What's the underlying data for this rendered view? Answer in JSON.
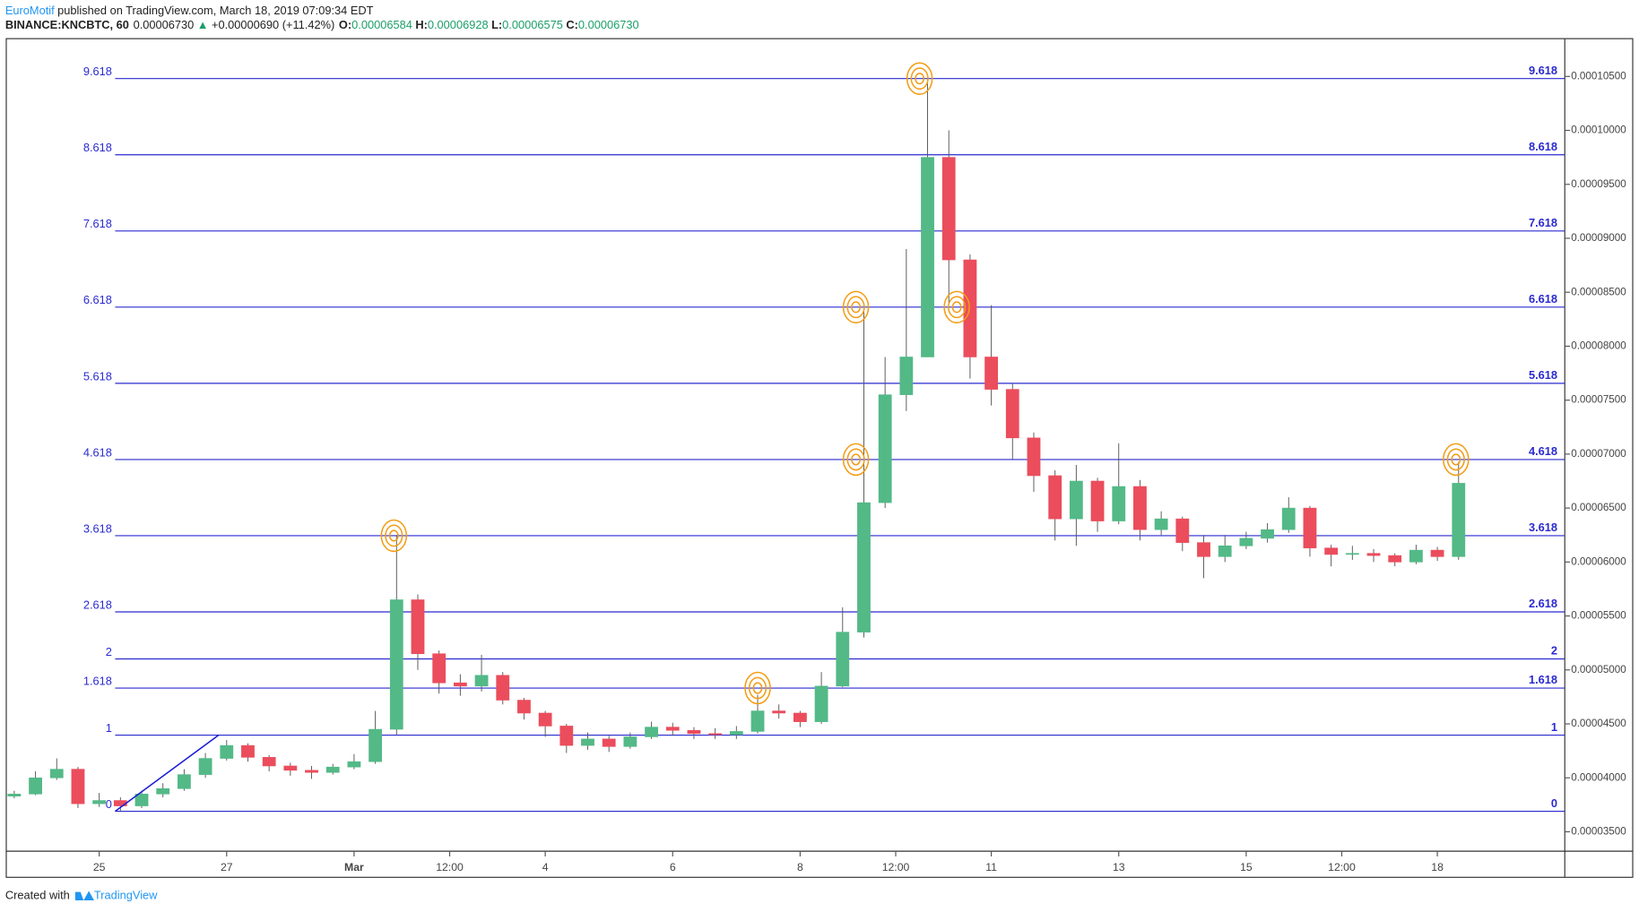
{
  "header": {
    "author": "EuroMotif",
    "published": "published on TradingView.com, March 18, 2019 07:09:34 EDT",
    "symbol": "BINANCE:KNCBTC, 60",
    "last": "0.00006730",
    "arrow": "▲",
    "change": "+0.00000690 (+11.42%)",
    "ohlc": [
      {
        "label": "O:",
        "value": "0.00006584"
      },
      {
        "label": "H:",
        "value": "0.00006928"
      },
      {
        "label": "L:",
        "value": "0.00006575"
      },
      {
        "label": "C:",
        "value": "0.00006730"
      }
    ]
  },
  "chart_data": {
    "type": "candlestick",
    "x": [
      -8,
      0,
      8,
      16,
      24,
      32,
      40,
      48,
      56,
      64,
      72,
      80,
      88,
      96,
      104,
      112,
      120,
      128,
      136,
      144,
      152,
      160,
      168,
      176,
      184,
      192,
      200,
      208,
      216,
      224,
      232,
      240,
      248,
      256,
      264,
      272,
      280,
      288,
      296,
      304,
      312,
      320,
      328,
      336,
      344,
      352,
      360,
      368,
      376,
      384,
      392,
      400,
      408,
      416,
      424,
      432,
      440,
      448,
      456,
      464,
      472,
      480,
      488,
      496,
      504,
      512,
      520,
      528,
      536
    ],
    "open": [
      3.83e-05,
      3.85e-05,
      4e-05,
      4.08e-05,
      3.76e-05,
      3.79e-05,
      3.74e-05,
      3.85e-05,
      3.9e-05,
      4.03e-05,
      4.18e-05,
      4.3e-05,
      4.19e-05,
      4.11e-05,
      4.07e-05,
      4.05e-05,
      4.1e-05,
      4.15e-05,
      4.45e-05,
      5.65e-05,
      5.15e-05,
      4.88e-05,
      4.85e-05,
      4.95e-05,
      4.72e-05,
      4.6e-05,
      4.48e-05,
      4.3e-05,
      4.36e-05,
      4.29e-05,
      4.38e-05,
      4.47e-05,
      4.44e-05,
      4.41e-05,
      4.4e-05,
      4.43e-05,
      4.62e-05,
      4.6e-05,
      4.52e-05,
      4.85e-05,
      5.35e-05,
      6.55e-05,
      7.55e-05,
      7.9e-05,
      9.75e-05,
      8.8e-05,
      7.9e-05,
      7.6e-05,
      7.15e-05,
      6.8e-05,
      6.4e-05,
      6.75e-05,
      6.38e-05,
      6.7e-05,
      6.3e-05,
      6.4e-05,
      6.18e-05,
      6.05e-05,
      6.15e-05,
      6.22e-05,
      6.3e-05,
      6.5e-05,
      6.13e-05,
      6.07e-05,
      6.08e-05,
      6.06e-05,
      6e-05,
      6.11e-05,
      6.05e-05
    ],
    "high": [
      3.88e-05,
      4.06e-05,
      4.18e-05,
      4.1e-05,
      3.86e-05,
      3.82e-05,
      3.88e-05,
      3.95e-05,
      4.08e-05,
      4.23e-05,
      4.35e-05,
      4.32e-05,
      4.21e-05,
      4.14e-05,
      4.11e-05,
      4.13e-05,
      4.22e-05,
      4.62e-05,
      6.25e-05,
      5.7e-05,
      5.18e-05,
      4.96e-05,
      5.14e-05,
      4.98e-05,
      4.74e-05,
      4.62e-05,
      4.5e-05,
      4.42e-05,
      4.39e-05,
      4.42e-05,
      4.52e-05,
      4.51e-05,
      4.47e-05,
      4.46e-05,
      4.48e-05,
      4.77e-05,
      4.68e-05,
      4.62e-05,
      4.98e-05,
      5.58e-05,
      8.38e-05,
      7.9e-05,
      8.9e-05,
      0.0001048,
      0.0001,
      8.85e-05,
      8.38e-05,
      7.65e-05,
      7.2e-05,
      6.85e-05,
      6.9e-05,
      6.78e-05,
      7.1e-05,
      6.76e-05,
      6.47e-05,
      6.42e-05,
      6.25e-05,
      6.25e-05,
      6.28e-05,
      6.36e-05,
      6.6e-05,
      6.52e-05,
      6.16e-05,
      6.15e-05,
      6.12e-05,
      6.08e-05,
      6.16e-05,
      6.14e-05,
      6.928e-05
    ],
    "low": [
      3.81e-05,
      3.84e-05,
      3.98e-05,
      3.72e-05,
      3.73e-05,
      3.69e-05,
      3.72e-05,
      3.82e-05,
      3.88e-05,
      4e-05,
      4.16e-05,
      4.15e-05,
      4.06e-05,
      4.02e-05,
      3.99e-05,
      4.03e-05,
      4.08e-05,
      4.13e-05,
      4.4e-05,
      5e-05,
      4.78e-05,
      4.76e-05,
      4.8e-05,
      4.68e-05,
      4.54e-05,
      4.38e-05,
      4.23e-05,
      4.26e-05,
      4.24e-05,
      4.27e-05,
      4.36e-05,
      4.39e-05,
      4.36e-05,
      4.36e-05,
      4.36e-05,
      4.41e-05,
      4.55e-05,
      4.47e-05,
      4.5e-05,
      4.84e-05,
      5.3e-05,
      6.5e-05,
      7.4e-05,
      7.9e-05,
      8.4e-05,
      7.7e-05,
      7.45e-05,
      6.95e-05,
      6.65e-05,
      6.2e-05,
      6.15e-05,
      6.28e-05,
      6.35e-05,
      6.2e-05,
      6.25e-05,
      6.1e-05,
      5.85e-05,
      6e-05,
      6.12e-05,
      6.18e-05,
      6.27e-05,
      6.05e-05,
      5.96e-05,
      6.02e-05,
      6e-05,
      5.96e-05,
      5.98e-05,
      6.01e-05,
      6.02e-05
    ],
    "close": [
      3.85e-05,
      4e-05,
      4.08e-05,
      3.76e-05,
      3.79e-05,
      3.74e-05,
      3.85e-05,
      3.9e-05,
      4.03e-05,
      4.18e-05,
      4.3e-05,
      4.19e-05,
      4.11e-05,
      4.07e-05,
      4.05e-05,
      4.1e-05,
      4.15e-05,
      4.45e-05,
      5.65e-05,
      5.15e-05,
      4.88e-05,
      4.85e-05,
      4.95e-05,
      4.72e-05,
      4.6e-05,
      4.48e-05,
      4.3e-05,
      4.36e-05,
      4.29e-05,
      4.38e-05,
      4.47e-05,
      4.44e-05,
      4.41e-05,
      4.4e-05,
      4.43e-05,
      4.62e-05,
      4.6e-05,
      4.52e-05,
      4.85e-05,
      5.35e-05,
      6.55e-05,
      7.55e-05,
      7.9e-05,
      9.75e-05,
      8.8e-05,
      7.9e-05,
      7.6e-05,
      7.15e-05,
      6.8e-05,
      6.4e-05,
      6.75e-05,
      6.38e-05,
      6.7e-05,
      6.3e-05,
      6.4e-05,
      6.18e-05,
      6.05e-05,
      6.15e-05,
      6.22e-05,
      6.3e-05,
      6.5e-05,
      6.13e-05,
      6.07e-05,
      6.08e-05,
      6.06e-05,
      6e-05,
      6.11e-05,
      6.05e-05,
      6.73e-05
    ],
    "up_color": "#53b987",
    "down_color": "#eb4d5c",
    "xlim": [
      -11,
      576
    ],
    "ylim": [
      3.32e-05,
      0.0001085
    ],
    "xticks": [
      {
        "value": 24,
        "label": "25"
      },
      {
        "value": 72,
        "label": "27"
      },
      {
        "value": 120,
        "label": "Mar"
      },
      {
        "value": 156,
        "label": "12:00"
      },
      {
        "value": 192,
        "label": "4"
      },
      {
        "value": 240,
        "label": "6"
      },
      {
        "value": 288,
        "label": "8"
      },
      {
        "value": 324,
        "label": "12:00"
      },
      {
        "value": 360,
        "label": "11"
      },
      {
        "value": 408,
        "label": "13"
      },
      {
        "value": 456,
        "label": "15"
      },
      {
        "value": 492,
        "label": "12:00"
      },
      {
        "value": 528,
        "label": "18"
      }
    ],
    "yticks": [
      {
        "value": 3.5e-05,
        "label": "0.00003500"
      },
      {
        "value": 4e-05,
        "label": "0.00004000"
      },
      {
        "value": 4.5e-05,
        "label": "0.00004500"
      },
      {
        "value": 5e-05,
        "label": "0.00005000"
      },
      {
        "value": 5.5e-05,
        "label": "0.00005500"
      },
      {
        "value": 6e-05,
        "label": "0.00006000"
      },
      {
        "value": 6.5e-05,
        "label": "0.00006500"
      },
      {
        "value": 7e-05,
        "label": "0.00007000"
      },
      {
        "value": 7.5e-05,
        "label": "0.00007500"
      },
      {
        "value": 8e-05,
        "label": "0.00008000"
      },
      {
        "value": 8.5e-05,
        "label": "0.00008500"
      },
      {
        "value": 9e-05,
        "label": "0.00009000"
      },
      {
        "value": 9.5e-05,
        "label": "0.00009500"
      },
      {
        "value": 0.0001,
        "label": "0.00010000"
      },
      {
        "value": 0.000105,
        "label": "0.00010500"
      }
    ],
    "fib": {
      "color": "#2a2ad0",
      "x_start": 30,
      "levels": [
        {
          "level": 0,
          "price": 3.69e-05
        },
        {
          "level": 1,
          "price": 4.396e-05
        },
        {
          "level": 1.618,
          "price": 4.832e-05
        },
        {
          "level": 2,
          "price": 5.102e-05
        },
        {
          "level": 2.618,
          "price": 5.538e-05
        },
        {
          "level": 3.618,
          "price": 6.244e-05
        },
        {
          "level": 4.618,
          "price": 6.95e-05
        },
        {
          "level": 5.618,
          "price": 7.656e-05
        },
        {
          "level": 6.618,
          "price": 8.362e-05
        },
        {
          "level": 7.618,
          "price": 9.068e-05
        },
        {
          "level": 8.618,
          "price": 9.774e-05
        },
        {
          "level": 9.618,
          "price": 0.0001048
        }
      ]
    },
    "trend_line": {
      "color": "#1a1ad6",
      "x": [
        30,
        69
      ],
      "y": [
        3.69e-05,
        4.396e-05
      ]
    },
    "marker_color": "#f39c12",
    "markers": [
      {
        "x": 135,
        "y": 6.244e-05
      },
      {
        "x": 272,
        "y": 4.832e-05
      },
      {
        "x": 309,
        "y": 8.362e-05
      },
      {
        "x": 309,
        "y": 6.95e-05
      },
      {
        "x": 333,
        "y": 0.0001048
      },
      {
        "x": 347,
        "y": 8.362e-05
      },
      {
        "x": 535,
        "y": 6.95e-05
      }
    ]
  },
  "footer": {
    "created": "Created with",
    "brand": "TradingView"
  }
}
